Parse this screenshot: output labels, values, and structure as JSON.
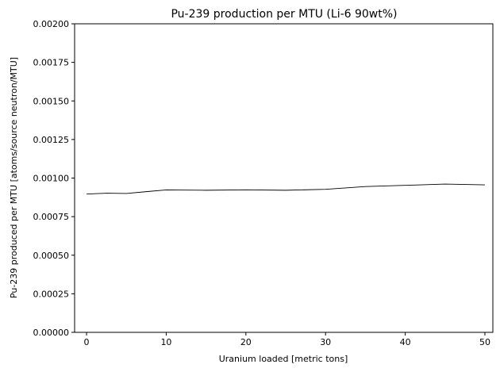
{
  "chart_data": {
    "type": "line",
    "title": "Pu-239 production per MTU (Li-6 90wt%)",
    "xlabel": "Uranium loaded [metric tons]",
    "ylabel": "Pu-239 produced per MTU [atoms/source neutron/MTU]",
    "xlim": [
      -1.5,
      51.0
    ],
    "ylim": [
      0.0,
      0.002
    ],
    "x_ticks": [
      0,
      10,
      20,
      30,
      40,
      50
    ],
    "x_tick_labels": [
      "0",
      "10",
      "20",
      "30",
      "40",
      "50"
    ],
    "y_ticks": [
      0.0,
      0.00025,
      0.0005,
      0.00075,
      0.001,
      0.00125,
      0.0015,
      0.00175,
      0.002
    ],
    "y_tick_labels": [
      "0.00000",
      "0.00025",
      "0.00050",
      "0.00075",
      "0.00100",
      "0.00125",
      "0.00150",
      "0.00175",
      "0.00200"
    ],
    "grid": false,
    "series": [
      {
        "name": "Pu-239",
        "color": "#000000",
        "x": [
          0,
          2.5,
          5,
          7.5,
          10,
          15,
          20,
          25,
          30,
          35,
          40,
          45,
          50
        ],
        "y": [
          0.000896,
          0.000902,
          0.0009,
          0.000912,
          0.000923,
          0.000921,
          0.000924,
          0.000921,
          0.000927,
          0.000945,
          0.000953,
          0.000961,
          0.000956
        ]
      }
    ]
  }
}
